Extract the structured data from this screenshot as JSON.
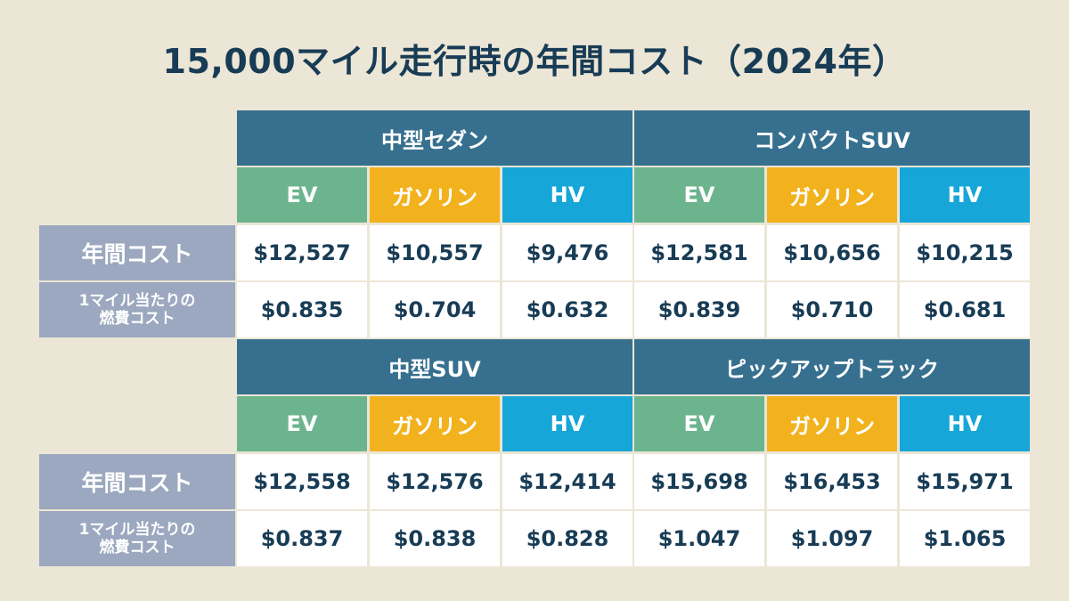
{
  "title": "15,000マイル走行時の年間コスト（2024年）",
  "row_labels": {
    "annual_cost": "年間コスト",
    "per_mile_line1": "1マイル当たりの",
    "per_mile_line2": "燃費コスト"
  },
  "fuel_labels": {
    "ev": "EV",
    "gas": "ガソリン",
    "hv": "HV"
  },
  "vehicles": [
    {
      "name": "中型セダン",
      "annual": [
        "$12,527",
        "$10,557",
        "$9,476"
      ],
      "per_mile": [
        "$0.835",
        "$0.704",
        "$0.632"
      ]
    },
    {
      "name": "コンパクトSUV",
      "annual": [
        "$12,581",
        "$10,656",
        "$10,215"
      ],
      "per_mile": [
        "$0.839",
        "$0.710",
        "$0.681"
      ]
    },
    {
      "name": "中型SUV",
      "annual": [
        "$12,558",
        "$12,576",
        "$12,414"
      ],
      "per_mile": [
        "$0.837",
        "$0.838",
        "$0.828"
      ]
    },
    {
      "name": "ピックアップトラック",
      "annual": [
        "$15,698",
        "$16,453",
        "$15,971"
      ],
      "per_mile": [
        "$1.047",
        "$1.097",
        "$1.065"
      ]
    }
  ],
  "colors": {
    "background": "#ebe6d6",
    "header": "#37708f",
    "ev": "#6cb48e",
    "gasoline": "#f2b21e",
    "hv": "#17a6d8",
    "row_label": "#9ba8bf",
    "text_dark": "#183c55"
  }
}
